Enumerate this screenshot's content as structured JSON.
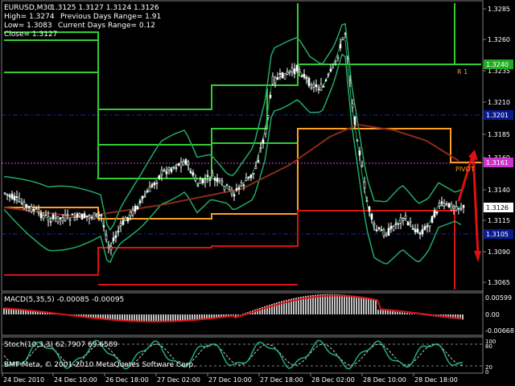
{
  "header": {
    "symbol": "EURUSD,M30",
    "ohlc": "1.3125 1.3127 1.3124 1.3126",
    "high": "High= 1.3274",
    "low": "Low= 1.3083",
    "close": "Close= 1.3127",
    "prev_range": "Previous Days Range= 1.91",
    "cur_range": "Current Days Range= 0.12"
  },
  "price_axis": {
    "ticks": [
      "1.3285",
      "1.3260",
      "1.3235",
      "1.3210",
      "1.3185",
      "1.3160",
      "1.3140",
      "1.3115",
      "1.3090",
      "1.3065"
    ],
    "tags": [
      {
        "text": "1.3240",
        "color": "#22aa22"
      },
      {
        "text": "1.3201",
        "color": "#0a1a8c"
      },
      {
        "text": "1.3161",
        "color": "#cc33cc"
      },
      {
        "text": "1.3126",
        "color": "#ffffff"
      },
      {
        "text": "1.3105",
        "color": "#0a1a8c"
      }
    ]
  },
  "pivot_labels": {
    "r1": "R 1",
    "pivot": "PIVOT"
  },
  "macd": {
    "label": "MACD(5,35,5) -0.00085 -0.00095",
    "axis": [
      "0.00599",
      "0.00",
      "-0.00668"
    ]
  },
  "stoch": {
    "label": "Stoch(10,3,3) 62.7907 69.6589",
    "axis": [
      "100",
      "80",
      "20",
      "0"
    ]
  },
  "copyright": "BMF-Meta, © 2001-2010 MetaQuotes Software Corp.",
  "time_axis": [
    "24 Dec 2010",
    "24 Dec 10:00",
    "26 Dec 18:00",
    "27 Dec 02:00",
    "27 Dec 10:00",
    "27 Dec 18:00",
    "28 Dec 02:00",
    "28 Dec 10:00",
    "28 Dec 18:00"
  ],
  "colors": {
    "background": "#000000",
    "candle_up": "#ffffff",
    "candle_down": "#ffffff",
    "bollinger": "#22aa66",
    "ma_long": "#8b2a1a",
    "resistance": "#33cc33",
    "pivot": "#ffa020",
    "support": "#dd1111",
    "line_blue": "#1a2aa0",
    "line_magenta": "#dd44dd",
    "macd_hist": "#c0c0c0",
    "macd_signal": "#dd1111",
    "stoch_main": "#22aa88",
    "stoch_signal": "#cccccc"
  }
}
